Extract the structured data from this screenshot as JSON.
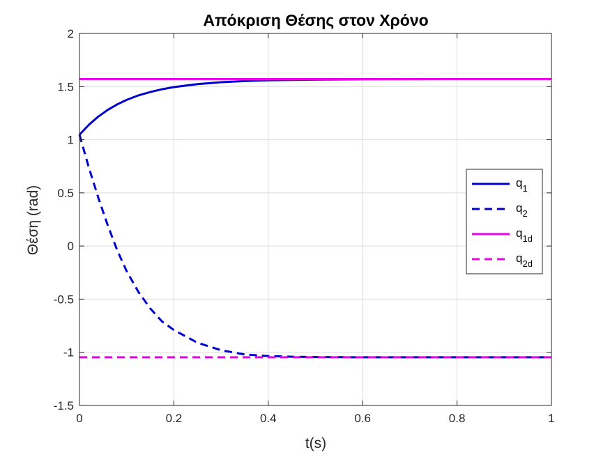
{
  "chart_data": {
    "type": "line",
    "title": "Απόκριση Θέσης στον Χρόνο",
    "xlabel": "t(s)",
    "ylabel": "Θέση (rad)",
    "xlim": [
      0,
      1
    ],
    "ylim": [
      -1.5,
      2
    ],
    "xticks": [
      0,
      0.2,
      0.4,
      0.6,
      0.8,
      1
    ],
    "xtick_labels": [
      "0",
      "0.2",
      "0.4",
      "0.6",
      "0.8",
      "1"
    ],
    "yticks": [
      -1.5,
      -1,
      -0.5,
      0,
      0.5,
      1,
      1.5,
      2
    ],
    "ytick_labels": [
      "-1.5",
      "-1",
      "-0.5",
      "0",
      "0.5",
      "1",
      "1.5",
      "2"
    ],
    "grid": true,
    "legend_position": "right",
    "series": [
      {
        "name": "q1",
        "legend_base": "q",
        "legend_sub": "1",
        "color": "#0000CC",
        "style": "solid",
        "x": [
          0,
          0.02,
          0.04,
          0.06,
          0.08,
          0.1,
          0.125,
          0.15,
          0.175,
          0.2,
          0.25,
          0.3,
          0.35,
          0.4,
          0.45,
          0.5,
          0.6,
          0.7,
          0.8,
          0.9,
          1
        ],
        "y": [
          1.047,
          1.141,
          1.218,
          1.281,
          1.333,
          1.375,
          1.417,
          1.449,
          1.475,
          1.495,
          1.523,
          1.541,
          1.552,
          1.559,
          1.563,
          1.566,
          1.569,
          1.57,
          1.571,
          1.571,
          1.571
        ]
      },
      {
        "name": "q2",
        "legend_base": "q",
        "legend_sub": "2",
        "color": "#0000CC",
        "style": "dashed",
        "x": [
          0,
          0.02,
          0.04,
          0.06,
          0.08,
          0.1,
          0.125,
          0.15,
          0.175,
          0.2,
          0.25,
          0.3,
          0.35,
          0.4,
          0.45,
          0.5,
          0.6,
          0.7,
          0.8,
          0.9,
          1
        ],
        "y": [
          1.047,
          0.737,
          0.453,
          0.194,
          -0.041,
          -0.237,
          -0.432,
          -0.588,
          -0.71,
          -0.79,
          -0.91,
          -0.98,
          -1.02,
          -1.035,
          -1.042,
          -1.045,
          -1.047,
          -1.047,
          -1.047,
          -1.047,
          -1.047
        ]
      },
      {
        "name": "q1d",
        "legend_base": "q",
        "legend_sub": "1d",
        "color": "#EE00EE",
        "style": "solid",
        "x": [
          0,
          1
        ],
        "y": [
          1.571,
          1.571
        ]
      },
      {
        "name": "q2d",
        "legend_base": "q",
        "legend_sub": "2d",
        "color": "#EE00EE",
        "style": "dashed",
        "x": [
          0,
          1
        ],
        "y": [
          -1.047,
          -1.047
        ]
      }
    ]
  }
}
